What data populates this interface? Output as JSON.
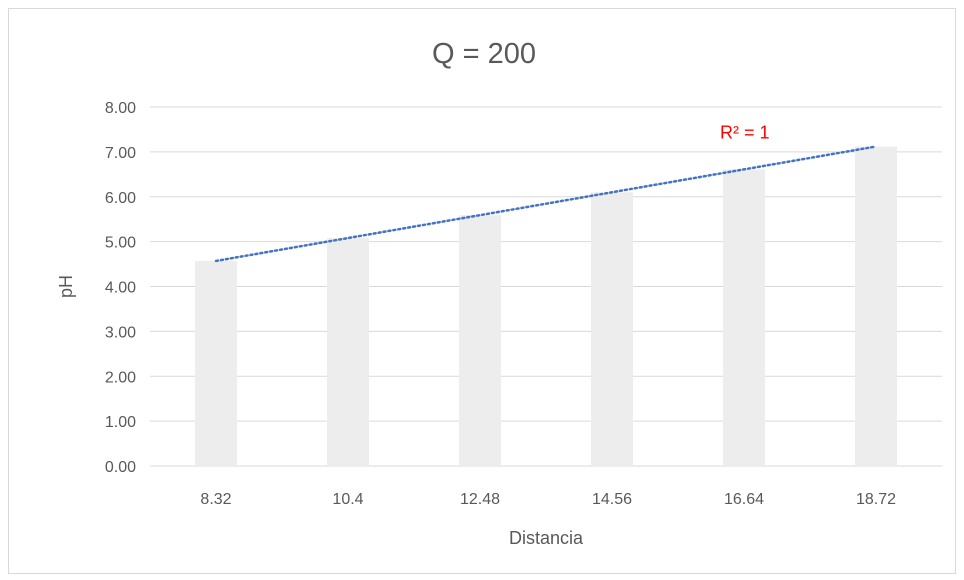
{
  "chart_data": {
    "type": "bar",
    "title": "Q = 200",
    "xlabel": "Distancia",
    "ylabel": "pH",
    "categories": [
      "8.32",
      "10.4",
      "12.48",
      "14.56",
      "16.64",
      "18.72"
    ],
    "values": [
      4.57,
      5.08,
      5.59,
      6.1,
      6.61,
      7.12
    ],
    "ylim": [
      0,
      8
    ],
    "yticks": [
      "0.00",
      "1.00",
      "2.00",
      "3.00",
      "4.00",
      "5.00",
      "6.00",
      "7.00",
      "8.00"
    ],
    "bar_color": "#ededed",
    "grid": true,
    "legend": "none",
    "trendline": {
      "type": "linear",
      "style": "dotted",
      "color": "#4472c4",
      "label": "R² = 1",
      "label_color": "#ff0000"
    }
  }
}
